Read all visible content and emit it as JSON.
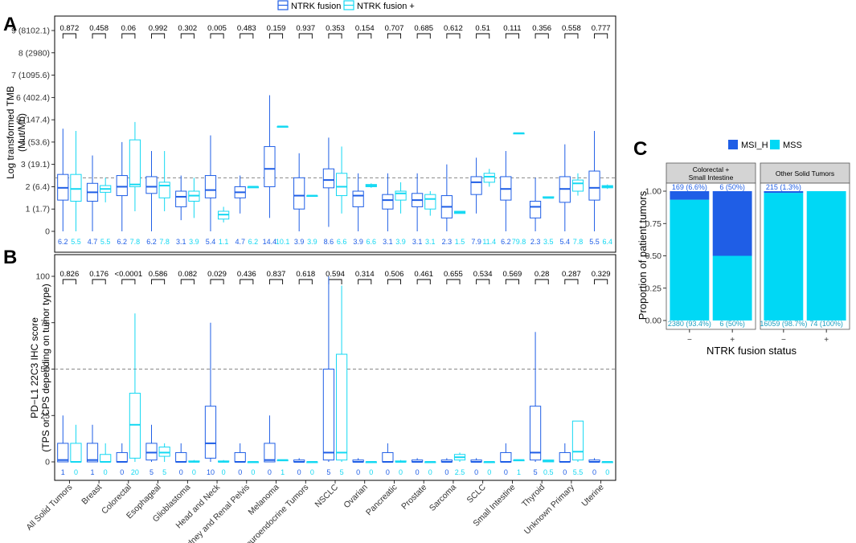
{
  "panels": {
    "a": "A",
    "b": "B",
    "c": "C"
  },
  "legend_top": {
    "neg": "NTRK fusion −",
    "pos": "NTRK fusion +"
  },
  "colors": {
    "neg": "#1f5ee6",
    "pos": "#14d8f2",
    "msi": "#1f5ee6",
    "mss": "#00d8f5",
    "ref": "#888888",
    "strip": "#d4d4d4"
  },
  "chart_data": [
    {
      "type": "boxplot",
      "panel": "A",
      "ylabel": "Log transformed TMB",
      "ylabel2": "(Mut/Mb)",
      "ylim": [
        0,
        9
      ],
      "yticks": [
        0,
        1,
        2,
        3,
        4,
        5,
        6,
        7,
        8,
        9
      ],
      "ytick_labels": [
        "0",
        "1 (1.7)",
        "2 (6.4)",
        "3 (19.1)",
        "4 (53.6)",
        "5 (147.4)",
        "6 (402.4)",
        "7 (1095.6)",
        "8 (2980)",
        "9 (8102.1)"
      ],
      "ref_line": 2.4,
      "categories": [
        "All Solid Tumors",
        "Breast",
        "Colorectal",
        "Esophageal",
        "Glioblastoma",
        "Head and Neck",
        "Kidney and Renal Pelvis",
        "Melanoma",
        "Neuroendocrine Tumors",
        "NSCLC",
        "Ovarian",
        "Pancreatic",
        "Prostate",
        "Sarcoma",
        "SCLC",
        "Small Intestine",
        "Thyroid",
        "Unknown Primary",
        "Uterine"
      ],
      "pvalues": [
        "0.872",
        "0.458",
        "0.06",
        "0.992",
        "0.302",
        "0.005",
        "0.483",
        "0.159",
        "0.937",
        "0.353",
        "0.154",
        "0.707",
        "0.685",
        "0.612",
        "0.51",
        "0.111",
        "0.356",
        "0.558",
        "0.777"
      ],
      "medians_neg": [
        "6.2",
        "4.7",
        "6.2",
        "6.2",
        "3.1",
        "5.4",
        "4.7",
        "14.4",
        "3.9",
        "8.6",
        "3.9",
        "3.1",
        "3.1",
        "2.3",
        "7.9",
        "6.2",
        "2.3",
        "5.4",
        "5.5"
      ],
      "medians_pos": [
        "5.5",
        "5.5",
        "7.8",
        "7.8",
        "3.9",
        "1.1",
        "6.2",
        "10.1",
        "3.9",
        "6.6",
        "6.6",
        "3.9",
        "3.1",
        "1.5",
        "11.4",
        "79.8",
        "3.5",
        "7.8",
        "6.4"
      ],
      "boxes_neg": [
        [
          0,
          1.4,
          1.95,
          2.55,
          4.6
        ],
        [
          0,
          1.35,
          1.75,
          2.15,
          3.4
        ],
        [
          0,
          1.6,
          2.0,
          2.5,
          4.0
        ],
        [
          0,
          1.7,
          2.0,
          2.45,
          3.6
        ],
        [
          0.5,
          1.1,
          1.55,
          1.8,
          2.5
        ],
        [
          0,
          1.5,
          1.85,
          2.5,
          4.3
        ],
        [
          0.8,
          1.5,
          1.75,
          2.0,
          2.5
        ],
        [
          0.6,
          2.0,
          2.8,
          3.8,
          6.1
        ],
        [
          0,
          1.0,
          1.6,
          2.4,
          3.5
        ],
        [
          0.2,
          1.95,
          2.3,
          2.8,
          4.2
        ],
        [
          0,
          1.1,
          1.6,
          1.8,
          2.6
        ],
        [
          0,
          1.0,
          1.4,
          1.65,
          2.6
        ],
        [
          0,
          1.1,
          1.4,
          1.7,
          2.6
        ],
        [
          0,
          0.6,
          1.1,
          1.6,
          3.0
        ],
        [
          0.8,
          1.65,
          2.2,
          2.45,
          3.3
        ],
        [
          0,
          1.4,
          1.9,
          2.45,
          3.6
        ],
        [
          0,
          0.6,
          1.1,
          1.35,
          2.4
        ],
        [
          0,
          1.3,
          1.9,
          2.45,
          3.9
        ],
        [
          0,
          1.4,
          1.95,
          2.7,
          4.5
        ]
      ],
      "boxes_pos": [
        [
          0,
          1.35,
          1.9,
          2.55,
          4.5
        ],
        [
          1.3,
          1.75,
          1.9,
          2.05,
          2.4
        ],
        [
          0.9,
          2.0,
          2.1,
          4.1,
          4.9
        ],
        [
          0.9,
          1.5,
          2.05,
          2.2,
          3.6
        ],
        [
          0.6,
          1.35,
          1.6,
          1.8,
          2.4
        ],
        [
          0.4,
          0.55,
          0.75,
          0.9,
          1.1
        ],
        [
          1.95,
          1.95,
          2.0,
          2.0,
          2.0
        ],
        [
          4.7,
          4.7,
          4.7,
          4.7,
          4.7
        ],
        [
          1.6,
          1.6,
          1.6,
          1.6,
          1.6
        ],
        [
          0.8,
          1.6,
          2.0,
          2.6,
          3.8
        ],
        [
          1.95,
          2.0,
          2.05,
          2.1,
          2.15
        ],
        [
          0.8,
          1.4,
          1.7,
          1.8,
          2.2
        ],
        [
          0.7,
          1.0,
          1.45,
          1.65,
          1.8
        ],
        [
          0.8,
          0.8,
          0.85,
          0.9,
          0.9
        ],
        [
          2.0,
          2.2,
          2.45,
          2.6,
          2.8
        ],
        [
          4.4,
          4.4,
          4.4,
          4.4,
          4.4
        ],
        [
          1.5,
          1.5,
          1.5,
          1.55,
          1.55
        ],
        [
          1.6,
          1.8,
          2.15,
          2.3,
          2.6
        ],
        [
          1.9,
          1.95,
          2.0,
          2.05,
          2.1
        ]
      ]
    },
    {
      "type": "boxplot",
      "panel": "B",
      "ylabel": "PD−L1 22C3 IHC score",
      "ylabel2": "(TPS or CPS depending on tumor type)",
      "ylim": [
        0,
        100
      ],
      "yticks": [
        0,
        25,
        50,
        75,
        100
      ],
      "ytick_labels": [
        "0",
        "25",
        "50",
        "75",
        "100"
      ],
      "ref_line": 50,
      "categories": [
        "All Solid Tumors",
        "Breast",
        "Colorectal",
        "Esophageal",
        "Glioblastoma",
        "Head and Neck",
        "Kidney and Renal Pelvis",
        "Melanoma",
        "Neuroendocrine Tumors",
        "NSCLC",
        "Ovarian",
        "Pancreatic",
        "Prostate",
        "Sarcoma",
        "SCLC",
        "Small Intestine",
        "Thyroid",
        "Unknown Primary",
        "Uterine"
      ],
      "pvalues": [
        "0.826",
        "0.176",
        "<0.0001",
        "0.586",
        "0.082",
        "0.029",
        "0.436",
        "0.837",
        "0.618",
        "0.594",
        "0.314",
        "0.506",
        "0.461",
        "0.655",
        "0.534",
        "0.569",
        "0.28",
        "0.287",
        "0.329"
      ],
      "medians_neg": [
        "1",
        "1",
        "0",
        "5",
        "0",
        "10",
        "0",
        "0",
        "0",
        "5",
        "0",
        "0",
        "0",
        "0",
        "0",
        "0",
        "5",
        "0",
        "0"
      ],
      "medians_pos": [
        "0",
        "0",
        "20",
        "5",
        "0",
        "0",
        "0",
        "1",
        "0",
        "5",
        "0",
        "0",
        "0",
        "2.5",
        "0",
        "1",
        "0.5",
        "5.5",
        "0"
      ],
      "boxes_neg": [
        [
          0,
          0,
          1,
          10,
          25
        ],
        [
          0,
          0,
          1,
          10,
          20
        ],
        [
          0,
          0,
          0,
          5,
          10
        ],
        [
          0,
          1,
          5,
          10,
          20
        ],
        [
          0,
          0,
          0,
          5,
          10
        ],
        [
          0,
          2,
          10,
          30,
          75
        ],
        [
          0,
          0,
          0,
          5,
          10
        ],
        [
          0,
          0,
          1,
          10,
          25
        ],
        [
          0,
          0,
          0,
          1,
          2
        ],
        [
          0,
          1,
          5,
          50,
          100
        ],
        [
          0,
          0,
          0,
          1,
          2
        ],
        [
          0,
          0,
          0,
          5,
          10
        ],
        [
          0,
          0,
          0,
          1,
          2
        ],
        [
          0,
          0,
          0,
          1,
          2
        ],
        [
          0,
          0,
          0,
          1,
          2
        ],
        [
          0,
          0,
          0,
          5,
          10
        ],
        [
          0,
          1,
          5,
          30,
          70
        ],
        [
          0,
          0,
          0,
          5,
          10
        ],
        [
          0,
          0,
          0,
          1,
          2
        ]
      ],
      "boxes_pos": [
        [
          0,
          0,
          0,
          10,
          20
        ],
        [
          0,
          0,
          0,
          4,
          10
        ],
        [
          0,
          2,
          20,
          37,
          80
        ],
        [
          0,
          3,
          5,
          8,
          10
        ],
        [
          0,
          0,
          0,
          0.5,
          1
        ],
        [
          0,
          0,
          0,
          0.5,
          1
        ],
        [
          0,
          0,
          0,
          0,
          0
        ],
        [
          1,
          1,
          1,
          1,
          1
        ],
        [
          0,
          0,
          0,
          0,
          0
        ],
        [
          0,
          1,
          5,
          58,
          95
        ],
        [
          0,
          0,
          0,
          0,
          0
        ],
        [
          0,
          0,
          0,
          0.5,
          1
        ],
        [
          0,
          0,
          0,
          0,
          0
        ],
        [
          0,
          1,
          2.5,
          4,
          5
        ],
        [
          0,
          0,
          0,
          0,
          0
        ],
        [
          1,
          1,
          1,
          1,
          1
        ],
        [
          0,
          0,
          0.5,
          1,
          1
        ],
        [
          0,
          1,
          5.5,
          22,
          22
        ],
        [
          0,
          0,
          0,
          0,
          0
        ]
      ]
    },
    {
      "type": "bar",
      "stacked": true,
      "panel": "C",
      "ylabel": "Proportion of patient tumors",
      "xlabel": "NTRK fusion status",
      "ylim": [
        0,
        1
      ],
      "yticks": [
        "0.00",
        "0.25",
        "0.50",
        "0.75",
        "1.00"
      ],
      "legend": [
        "MSI_H",
        "MSS"
      ],
      "facets": [
        {
          "title1": "Colorectal +",
          "title2": "Small Intestine",
          "categories": [
            "−",
            "+"
          ],
          "series": [
            {
              "name": "MSI_H",
              "values": [
                0.066,
                0.5
              ],
              "labels": [
                "169 (6.6%)",
                "6 (50%)"
              ]
            },
            {
              "name": "MSS",
              "values": [
                0.934,
                0.5
              ],
              "labels": [
                "2380 (93.4%)",
                "6 (50%)"
              ]
            }
          ]
        },
        {
          "title1": "Other Solid Tumors",
          "title2": "",
          "categories": [
            "−",
            "+"
          ],
          "series": [
            {
              "name": "MSI_H",
              "values": [
                0.013,
                0.0
              ],
              "labels": [
                "215 (1.3%)",
                ""
              ]
            },
            {
              "name": "MSS",
              "values": [
                0.987,
                1.0
              ],
              "labels": [
                "16059 (98.7%)",
                "74 (100%)"
              ]
            }
          ]
        }
      ]
    }
  ]
}
